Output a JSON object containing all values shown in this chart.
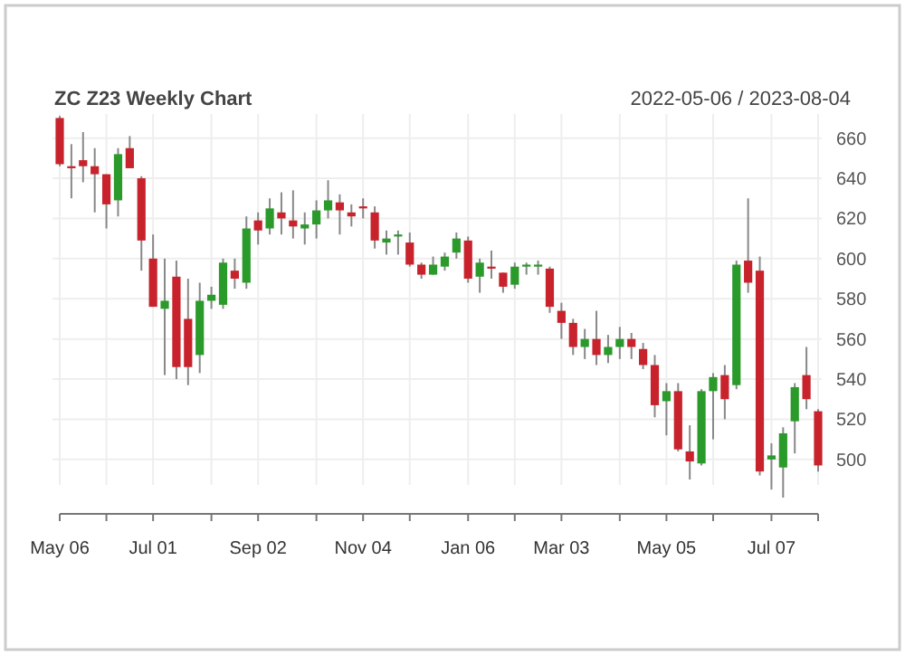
{
  "chart_data": {
    "type": "candlestick",
    "title": "ZC Z23 Weekly Chart",
    "subtitle": "2022-05-06 / 2023-08-04",
    "x": [
      "2022-05-06",
      "2022-05-13",
      "2022-05-20",
      "2022-05-27",
      "2022-06-03",
      "2022-06-10",
      "2022-06-17",
      "2022-06-24",
      "2022-07-01",
      "2022-07-08",
      "2022-07-15",
      "2022-07-22",
      "2022-07-29",
      "2022-08-05",
      "2022-08-12",
      "2022-08-19",
      "2022-08-26",
      "2022-09-02",
      "2022-09-09",
      "2022-09-16",
      "2022-09-23",
      "2022-09-30",
      "2022-10-07",
      "2022-10-14",
      "2022-10-21",
      "2022-10-28",
      "2022-11-04",
      "2022-11-11",
      "2022-11-18",
      "2022-11-25",
      "2022-12-02",
      "2022-12-09",
      "2022-12-16",
      "2022-12-23",
      "2022-12-30",
      "2023-01-06",
      "2023-01-13",
      "2023-01-20",
      "2023-01-27",
      "2023-02-03",
      "2023-02-10",
      "2023-02-17",
      "2023-02-24",
      "2023-03-03",
      "2023-03-10",
      "2023-03-17",
      "2023-03-24",
      "2023-03-31",
      "2023-04-07",
      "2023-04-14",
      "2023-04-21",
      "2023-04-28",
      "2023-05-05",
      "2023-05-12",
      "2023-05-19",
      "2023-05-26",
      "2023-06-02",
      "2023-06-09",
      "2023-06-16",
      "2023-06-23",
      "2023-06-30",
      "2023-07-07",
      "2023-07-14",
      "2023-07-21",
      "2023-07-28",
      "2023-08-04"
    ],
    "ohlc": [
      [
        670,
        671,
        646,
        647
      ],
      [
        646,
        657,
        630,
        645
      ],
      [
        649,
        663,
        638,
        646
      ],
      [
        646,
        655,
        623,
        642
      ],
      [
        642,
        642,
        615,
        627
      ],
      [
        629,
        655,
        621,
        652
      ],
      [
        655,
        661,
        645,
        645
      ],
      [
        640,
        641,
        594,
        609
      ],
      [
        600,
        612,
        576,
        576
      ],
      [
        575,
        600,
        542,
        579
      ],
      [
        591,
        599,
        540,
        546
      ],
      [
        570,
        590,
        537,
        546
      ],
      [
        552,
        588,
        543,
        579
      ],
      [
        579,
        586,
        575,
        582
      ],
      [
        577,
        600,
        575,
        598
      ],
      [
        594,
        600,
        585,
        590
      ],
      [
        588,
        621,
        585,
        615
      ],
      [
        619,
        623,
        607,
        614
      ],
      [
        615,
        630,
        612,
        625
      ],
      [
        623,
        633,
        612,
        620
      ],
      [
        619,
        634,
        610,
        616
      ],
      [
        615,
        623,
        607,
        617
      ],
      [
        617,
        629,
        610,
        624
      ],
      [
        624,
        639,
        620,
        629
      ],
      [
        628,
        632,
        612,
        624
      ],
      [
        623,
        627,
        616,
        621
      ],
      [
        626,
        630,
        620,
        625
      ],
      [
        623,
        626,
        605,
        609
      ],
      [
        608,
        614,
        602,
        610
      ],
      [
        611,
        614,
        602,
        612
      ],
      [
        608,
        613,
        596,
        597
      ],
      [
        597,
        598,
        590,
        592
      ],
      [
        592,
        601,
        592,
        597
      ],
      [
        596,
        603,
        594,
        601
      ],
      [
        603,
        613,
        600,
        610
      ],
      [
        609,
        611,
        588,
        590
      ],
      [
        591,
        600,
        583,
        598
      ],
      [
        596,
        604,
        590,
        595
      ],
      [
        593,
        593,
        583,
        586
      ],
      [
        587,
        598,
        585,
        596
      ],
      [
        596,
        598,
        592,
        597
      ],
      [
        596,
        599,
        592,
        597
      ],
      [
        595,
        596,
        573,
        576
      ],
      [
        574,
        578,
        560,
        568
      ],
      [
        568,
        570,
        552,
        556
      ],
      [
        556,
        565,
        550,
        560
      ],
      [
        560,
        574,
        547,
        552
      ],
      [
        552,
        562,
        548,
        556
      ],
      [
        556,
        566,
        550,
        560
      ],
      [
        560,
        563,
        550,
        556
      ],
      [
        555,
        558,
        545,
        547
      ],
      [
        547,
        552,
        521,
        527
      ],
      [
        529,
        538,
        512,
        534
      ],
      [
        534,
        538,
        504,
        505
      ],
      [
        504,
        517,
        490,
        499
      ],
      [
        498,
        535,
        497,
        534
      ],
      [
        534,
        543,
        510,
        541
      ],
      [
        542,
        547,
        520,
        530
      ],
      [
        537,
        599,
        535,
        597
      ],
      [
        599,
        630,
        583,
        588
      ],
      [
        594,
        601,
        492,
        494
      ],
      [
        500,
        508,
        485,
        502
      ],
      [
        496,
        516,
        481,
        513
      ],
      [
        519,
        538,
        503,
        536
      ],
      [
        542,
        556,
        525,
        530
      ],
      [
        524,
        525,
        494,
        497
      ]
    ],
    "colors": [
      "#c8232c",
      "#c8232c",
      "#c8232c",
      "#c8232c",
      "#c8232c",
      "#2a9a2a",
      "#c8232c",
      "#c8232c",
      "#c8232c",
      "#2a9a2a",
      "#c8232c",
      "#c8232c",
      "#2a9a2a",
      "#2a9a2a",
      "#2a9a2a",
      "#c8232c",
      "#2a9a2a",
      "#c8232c",
      "#2a9a2a",
      "#c8232c",
      "#c8232c",
      "#2a9a2a",
      "#2a9a2a",
      "#2a9a2a",
      "#c8232c",
      "#c8232c",
      "#c8232c",
      "#c8232c",
      "#2a9a2a",
      "#2a9a2a",
      "#c8232c",
      "#c8232c",
      "#2a9a2a",
      "#2a9a2a",
      "#2a9a2a",
      "#c8232c",
      "#2a9a2a",
      "#c8232c",
      "#c8232c",
      "#2a9a2a",
      "#2a9a2a",
      "#2a9a2a",
      "#c8232c",
      "#c8232c",
      "#c8232c",
      "#2a9a2a",
      "#c8232c",
      "#2a9a2a",
      "#2a9a2a",
      "#c8232c",
      "#c8232c",
      "#c8232c",
      "#2a9a2a",
      "#c8232c",
      "#c8232c",
      "#2a9a2a",
      "#2a9a2a",
      "#c8232c",
      "#2a9a2a",
      "#c8232c",
      "#c8232c",
      "#2a9a2a",
      "#2a9a2a",
      "#2a9a2a",
      "#c8232c",
      "#c8232c"
    ],
    "xlim": [
      "2022-05-06",
      "2023-08-04"
    ],
    "xticks": [
      {
        "value": "2022-05-06",
        "label": "May 06"
      },
      {
        "value": "2022-06-03",
        "label": null
      },
      {
        "value": "2022-07-01",
        "label": "Jul 01"
      },
      {
        "value": "2022-08-05",
        "label": null
      },
      {
        "value": "2022-09-02",
        "label": "Sep 02"
      },
      {
        "value": "2022-10-07",
        "label": null
      },
      {
        "value": "2022-11-04",
        "label": "Nov 04"
      },
      {
        "value": "2022-12-02",
        "label": null
      },
      {
        "value": "2023-01-06",
        "label": "Jan 06"
      },
      {
        "value": "2023-02-03",
        "label": null
      },
      {
        "value": "2023-03-03",
        "label": "Mar 03"
      },
      {
        "value": "2023-04-07",
        "label": null
      },
      {
        "value": "2023-05-05",
        "label": "May 05"
      },
      {
        "value": "2023-06-02",
        "label": null
      },
      {
        "value": "2023-07-07",
        "label": "Jul 07"
      },
      {
        "value": "2023-08-04",
        "label": null
      }
    ],
    "ylim": [
      472,
      672
    ],
    "yticks": [
      500,
      520,
      540,
      560,
      580,
      600,
      620,
      640,
      660
    ],
    "grid": true
  }
}
